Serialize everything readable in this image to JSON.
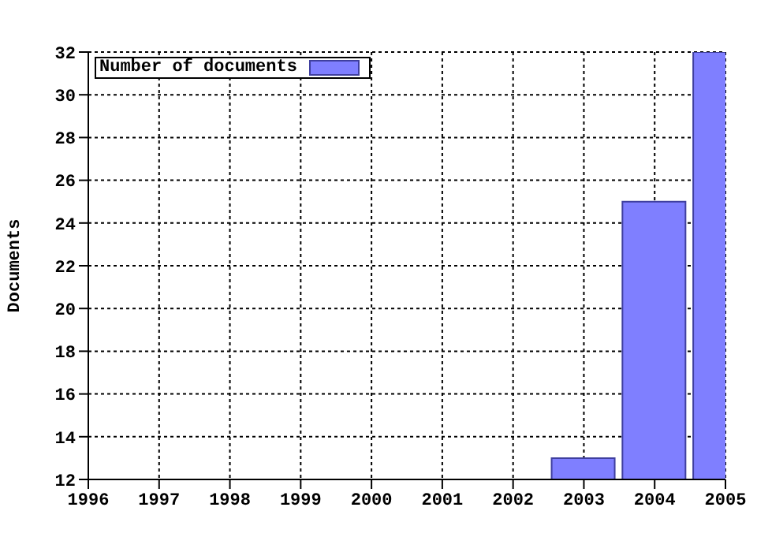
{
  "chart_data": {
    "type": "bar",
    "ylabel": "Documents",
    "x": [
      2003,
      2004,
      2005
    ],
    "series": [
      {
        "name": "Number of documents",
        "color": "#7f7fff",
        "values": [
          13,
          25,
          32
        ]
      }
    ],
    "xlim": [
      1996,
      2005
    ],
    "xticks": [
      1996,
      1997,
      1998,
      1999,
      2000,
      2001,
      2002,
      2003,
      2004,
      2005
    ],
    "ylim": [
      12,
      32
    ],
    "yticks": [
      12,
      14,
      16,
      18,
      20,
      22,
      24,
      26,
      28,
      30,
      32
    ],
    "grid": true,
    "legend": "top left"
  }
}
